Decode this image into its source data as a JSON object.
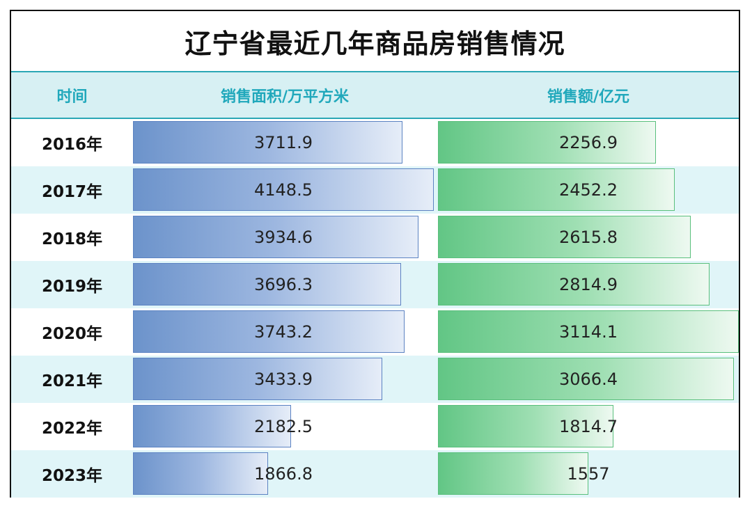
{
  "chart_data": {
    "type": "bar",
    "title": "辽宁省最近几年商品房销售情况",
    "columns": [
      "时间",
      "销售面积/万平方米",
      "销售额/亿元"
    ],
    "categories": [
      "2016年",
      "2017年",
      "2018年",
      "2019年",
      "2020年",
      "2021年",
      "2022年",
      "2023年"
    ],
    "series": [
      {
        "name": "销售面积/万平方米",
        "values": [
          "3711.9",
          "4148.5",
          "3934.6",
          "3696.3",
          "3743.2",
          "3433.9",
          "2182.5",
          "1866.8"
        ]
      },
      {
        "name": "销售额/亿元",
        "values": [
          "2256.9",
          "2452.2",
          "2615.8",
          "2814.9",
          "3114.1",
          "3066.4",
          "1814.7",
          "1557"
        ]
      }
    ],
    "colors": {
      "area_bar": "#6c93cb",
      "amount_bar": "#62c685",
      "header_text": "#20a8bb",
      "header_bg": "#d7f0f3",
      "stripe": "#e0f5f8"
    }
  }
}
